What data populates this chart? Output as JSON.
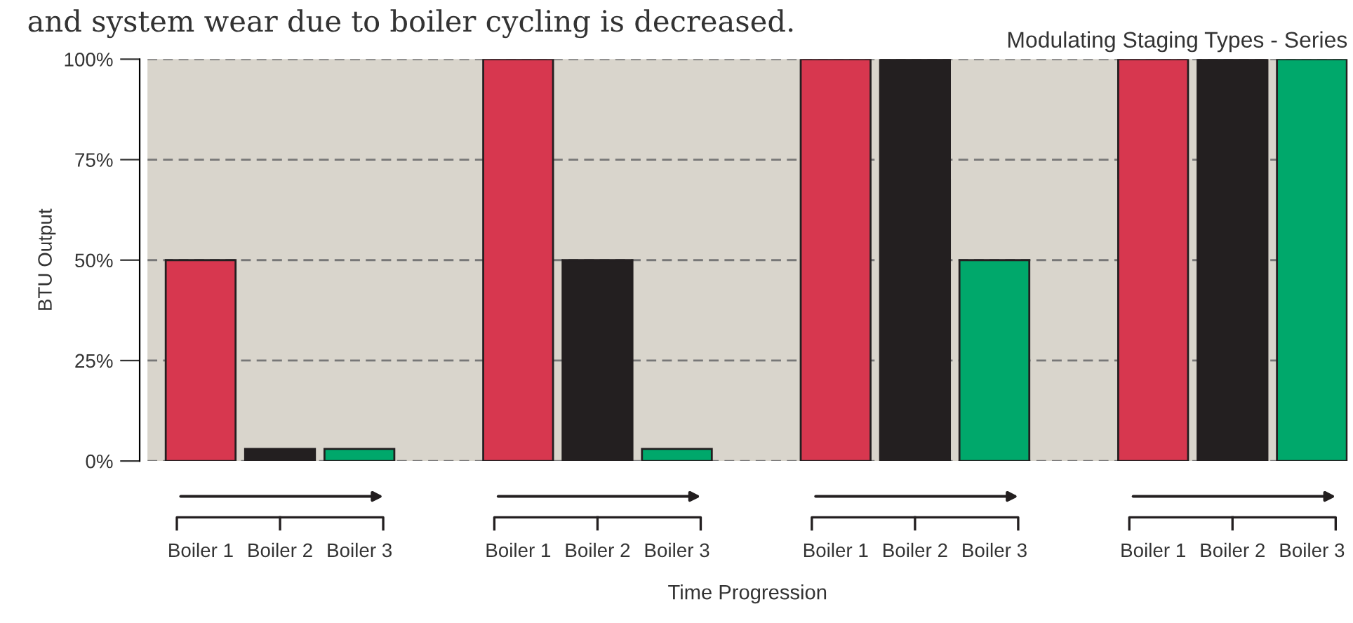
{
  "chart_data": {
    "type": "bar",
    "title": "Modulating Staging Types - Series",
    "xlabel": "Time Progression",
    "ylabel": "BTU Output",
    "annotations": [
      "and system wear due to boiler cycling is decreased."
    ],
    "categories": [
      "Boiler 1",
      "Boiler 2",
      "Boiler 3",
      null,
      "Boiler 1",
      "Boiler 2",
      "Boiler 3",
      null,
      "Boiler 1",
      "Boiler 2",
      "Boiler 3",
      null,
      "Boiler 1",
      "Boiler 2",
      "Boiler 3"
    ],
    "values": [
      50,
      3,
      3,
      null,
      100,
      50,
      3,
      null,
      100,
      100,
      50,
      null,
      100,
      100,
      100
    ],
    "colors": [
      "#d7374f",
      "#231f20",
      "#00a86b",
      "#ffffff",
      "#d7374f",
      "#231f20",
      "#00a86b",
      "#ffffff",
      "#d7374f",
      "#231f20",
      "#00a86b",
      "#ffffff",
      "#d7374f",
      "#231f20",
      "#00a86b"
    ],
    "ylim": [
      0,
      100
    ],
    "yticks": [
      {
        "value": 0,
        "label": "0%"
      },
      {
        "value": 25,
        "label": "25%"
      },
      {
        "value": 50,
        "label": "50%"
      },
      {
        "value": 75,
        "label": "75%"
      },
      {
        "value": 100,
        "label": "100%"
      }
    ],
    "grid": "y"
  }
}
